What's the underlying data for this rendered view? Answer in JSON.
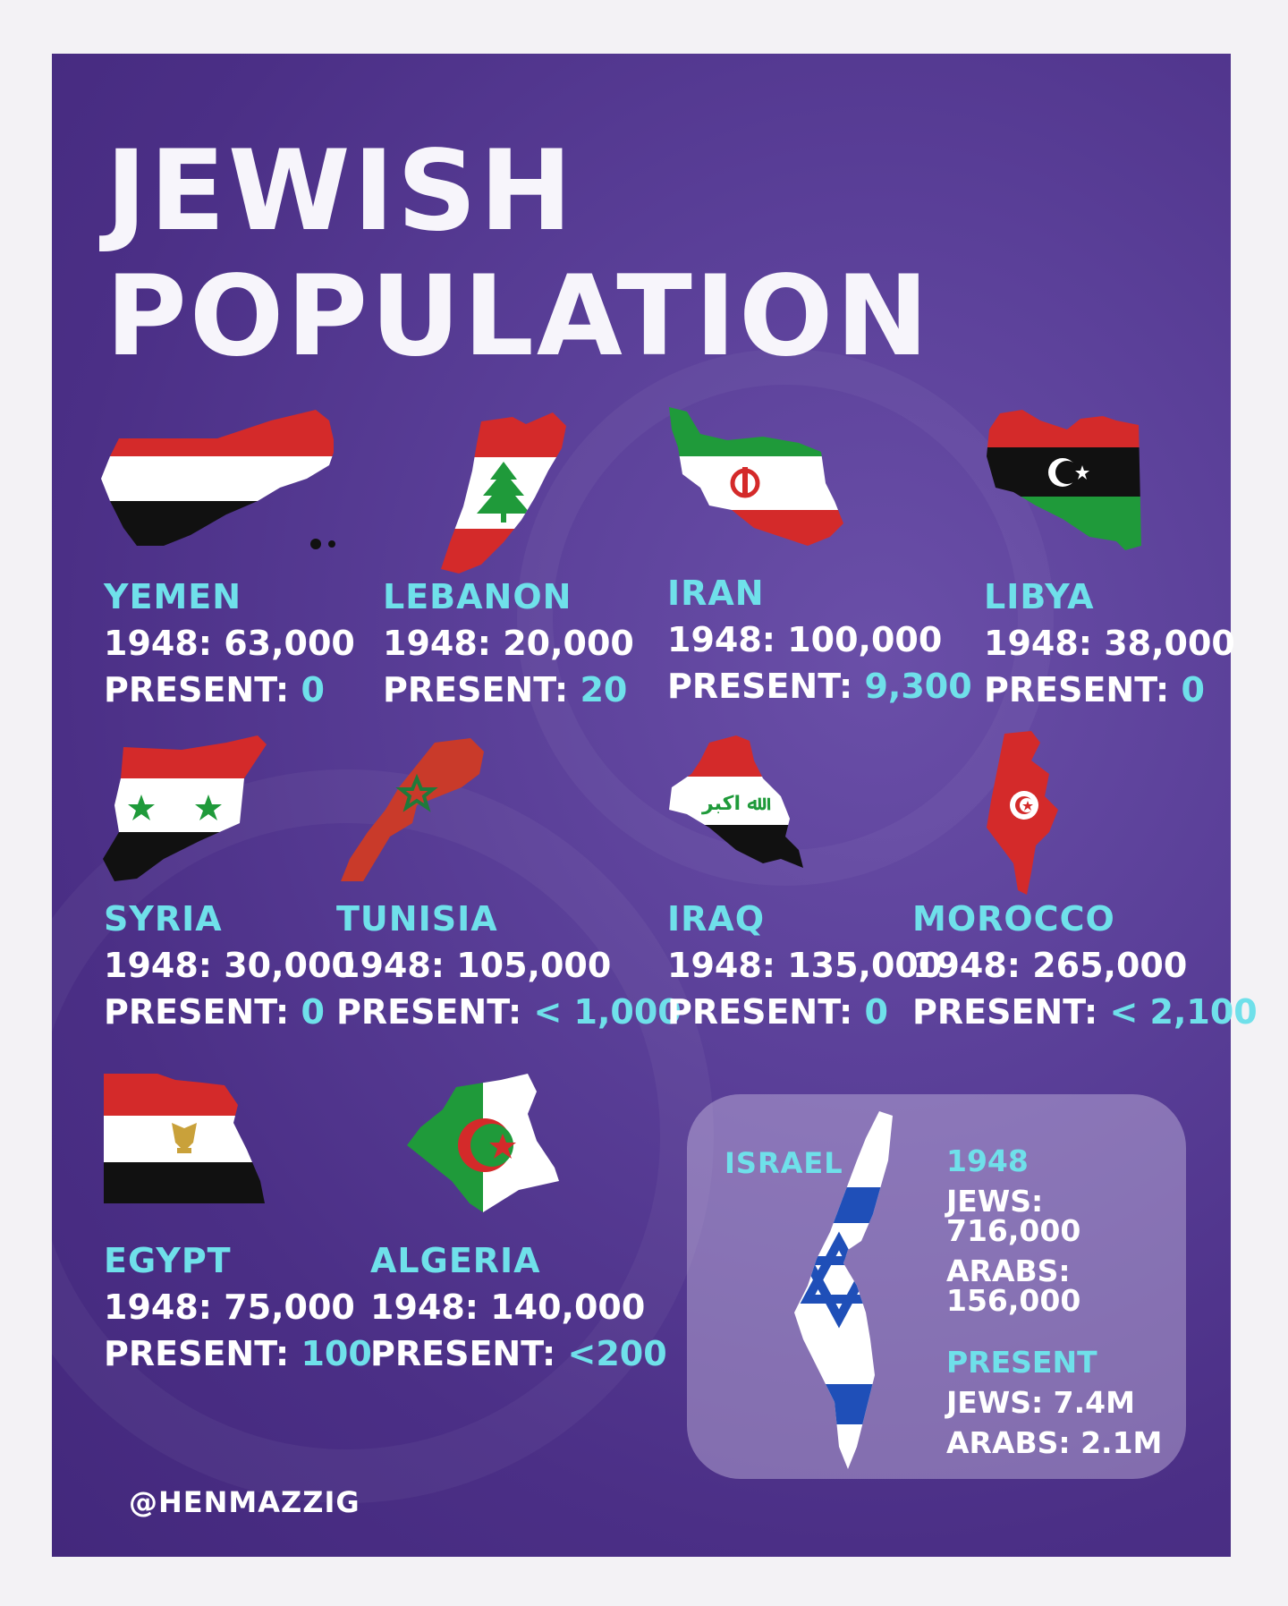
{
  "title": {
    "line1": "JEWISH",
    "line2": "POPULATION"
  },
  "countries": [
    {
      "name": "YEMEN",
      "y1948_label": "1948:",
      "y1948_value": "63,000",
      "present_label": "PRESENT:",
      "present_value": "0"
    },
    {
      "name": "LEBANON",
      "y1948_label": "1948:",
      "y1948_value": "20,000",
      "present_label": "PRESENT:",
      "present_value": "20"
    },
    {
      "name": "IRAN",
      "y1948_label": "1948:",
      "y1948_value": "100,000",
      "present_label": "PRESENT:",
      "present_value": "9,300"
    },
    {
      "name": "LIBYA",
      "y1948_label": "1948:",
      "y1948_value": "38,000",
      "present_label": "PRESENT:",
      "present_value": "0"
    },
    {
      "name": "SYRIA",
      "y1948_label": "1948:",
      "y1948_value": "30,000",
      "present_label": "PRESENT:",
      "present_value": "0"
    },
    {
      "name": "TUNISIA",
      "y1948_label": "1948:",
      "y1948_value": "105,000",
      "present_label": "PRESENT:",
      "present_value": "< 1,000"
    },
    {
      "name": "IRAQ",
      "y1948_label": "1948:",
      "y1948_value": "135,000",
      "present_label": "PRESENT:",
      "present_value": "0"
    },
    {
      "name": "MOROCCO",
      "y1948_label": "1948:",
      "y1948_value": "265,000",
      "present_label": "PRESENT:",
      "present_value": "< 2,100"
    },
    {
      "name": "EGYPT",
      "y1948_label": "1948:",
      "y1948_value": "75,000",
      "present_label": "PRESENT:",
      "present_value": "100"
    },
    {
      "name": "ALGERIA",
      "y1948_label": "1948:",
      "y1948_value": "140,000",
      "present_label": "PRESENT:",
      "present_value": "<200"
    }
  ],
  "israel": {
    "name": "ISRAEL",
    "heading_1948": "1948",
    "jews_1948": "JEWS: 716,000",
    "arabs_1948": "ARABS: 156,000",
    "heading_present": "PRESENT",
    "jews_present": "JEWS: 7.4M",
    "arabs_present": "ARABS: 2.1M"
  },
  "handle": "@HENMAZZIG",
  "colors": {
    "accent": "#6fe0ea",
    "background": "#4b2f86",
    "text": "#ffffff",
    "red": "#d42a2a",
    "green": "#1f9a3a",
    "black": "#111111",
    "israel_blue": "#1f4fb8"
  }
}
